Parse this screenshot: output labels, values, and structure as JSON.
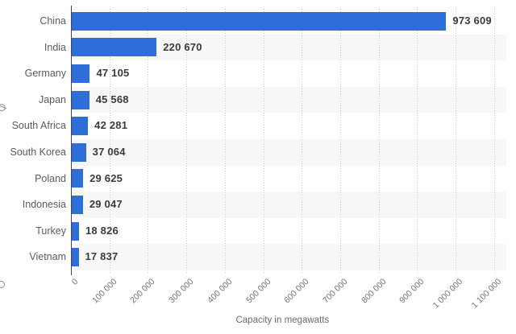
{
  "chart_data": {
    "type": "bar",
    "orientation": "horizontal",
    "title": "",
    "xlabel": "Capacity in megawatts",
    "ylabel": "",
    "categories": [
      "China",
      "India",
      "Germany",
      "Japan",
      "South Africa",
      "South Korea",
      "Poland",
      "Indonesia",
      "Turkey",
      "Vietnam"
    ],
    "values": [
      973609,
      220670,
      47105,
      45568,
      42281,
      37064,
      29625,
      29047,
      18826,
      17837
    ],
    "value_labels": [
      "973 609",
      "220 670",
      "47 105",
      "45 568",
      "42 281",
      "37 064",
      "29 625",
      "29 047",
      "18 826",
      "17 837"
    ],
    "xlim": [
      0,
      1100000
    ],
    "x_ticks": [
      0,
      100000,
      200000,
      300000,
      400000,
      500000,
      600000,
      700000,
      800000,
      900000,
      1000000,
      1100000
    ],
    "x_tick_labels": [
      "0",
      "100 000",
      "200 000",
      "300 000",
      "400 000",
      "500 000",
      "600 000",
      "700 000",
      "800 000",
      "900 000",
      "1 000 000",
      "1 100 000"
    ],
    "grid": "vertical-dotted",
    "legend": "none",
    "colors": {
      "bar": "#2d6ed8",
      "row_stripe": "#f7f7f7",
      "gridline": "#c9c9c9",
      "axis_line": "#454545",
      "category_text": "#595c5e",
      "value_text": "#3b3b3b",
      "tick_text": "#737373",
      "axis_title_text": "#6b6b6b"
    }
  }
}
